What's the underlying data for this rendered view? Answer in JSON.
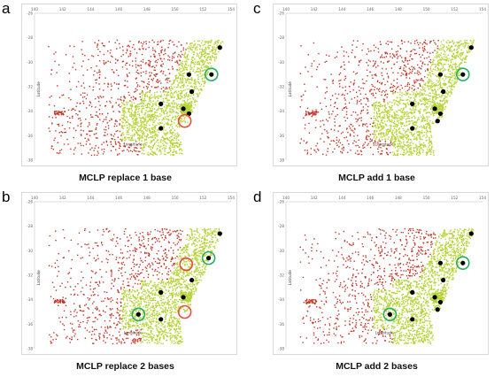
{
  "panels": [
    {
      "letter": "a",
      "caption": "MCLP replace 1 base"
    },
    {
      "letter": "c",
      "caption": "MCLP add 1 base"
    },
    {
      "letter": "b",
      "caption": "MCLP replace 2 bases"
    },
    {
      "letter": "d",
      "caption": "MCLP add 2 bases"
    }
  ],
  "colors": {
    "uncovered": "#c0392b",
    "covered": "#b5d334",
    "base": "#000000",
    "new_base_circle": "#27ae60",
    "removed_base_circle": "#e74c3c"
  },
  "chart_data": [
    {
      "type": "scatter",
      "panel": "a",
      "title": "MCLP replace 1 base",
      "xlabel": "Longitude",
      "ylabel": "Latitude",
      "xlim": [
        140,
        154
      ],
      "ylim": [
        -38,
        -26
      ],
      "x_ticks": [
        140,
        142,
        144,
        146,
        148,
        150,
        152,
        154
      ],
      "y_ticks": [
        -26,
        -28,
        -30,
        -32,
        -34,
        -36,
        -38
      ],
      "bases": [
        [
          153.2,
          -28.8
        ],
        [
          151.0,
          -31.0
        ],
        [
          152.6,
          -31.0
        ],
        [
          151.2,
          -32.4
        ],
        [
          150.6,
          -33.8
        ],
        [
          151.0,
          -34.2
        ],
        [
          149.0,
          -33.4
        ],
        [
          149.0,
          -35.4
        ]
      ],
      "new_bases": [
        [
          152.6,
          -31.0
        ]
      ],
      "removed_bases": [
        [
          150.7,
          -34.8
        ]
      ]
    },
    {
      "type": "scatter",
      "panel": "c",
      "title": "MCLP add 1 base",
      "xlabel": "Longitude",
      "ylabel": "Latitude",
      "xlim": [
        140,
        154
      ],
      "ylim": [
        -38,
        -26
      ],
      "x_ticks": [
        140,
        142,
        144,
        146,
        148,
        150,
        152,
        154
      ],
      "y_ticks": [
        -26,
        -28,
        -30,
        -32,
        -34,
        -36,
        -38
      ],
      "bases": [
        [
          153.2,
          -28.8
        ],
        [
          151.0,
          -31.0
        ],
        [
          152.6,
          -31.0
        ],
        [
          151.2,
          -32.4
        ],
        [
          150.6,
          -33.8
        ],
        [
          151.0,
          -34.2
        ],
        [
          150.8,
          -34.8
        ],
        [
          149.0,
          -33.4
        ],
        [
          149.0,
          -35.4
        ]
      ],
      "new_bases": [
        [
          152.6,
          -31.0
        ]
      ],
      "removed_bases": []
    },
    {
      "type": "scatter",
      "panel": "b",
      "title": "MCLP replace 2 bases",
      "xlabel": "Longitude",
      "ylabel": "Latitude",
      "xlim": [
        140,
        154
      ],
      "ylim": [
        -38,
        -26
      ],
      "x_ticks": [
        140,
        142,
        144,
        146,
        148,
        150,
        152,
        154
      ],
      "y_ticks": [
        -26,
        -28,
        -30,
        -32,
        -34,
        -36,
        -38
      ],
      "bases": [
        [
          153.2,
          -28.6
        ],
        [
          152.4,
          -30.6
        ],
        [
          151.2,
          -32.4
        ],
        [
          150.6,
          -33.8
        ],
        [
          149.0,
          -33.4
        ],
        [
          147.4,
          -35.2
        ],
        [
          149.0,
          -35.6
        ]
      ],
      "new_bases": [
        [
          152.4,
          -30.6
        ],
        [
          147.4,
          -35.2
        ]
      ],
      "removed_bases": [
        [
          150.8,
          -31.1
        ],
        [
          150.7,
          -35.0
        ]
      ]
    },
    {
      "type": "scatter",
      "panel": "d",
      "title": "MCLP add 2 bases",
      "xlabel": "Longitude",
      "ylabel": "Latitude",
      "xlim": [
        140,
        154
      ],
      "ylim": [
        -38,
        -26
      ],
      "x_ticks": [
        140,
        142,
        144,
        146,
        148,
        150,
        152,
        154
      ],
      "y_ticks": [
        -26,
        -28,
        -30,
        -32,
        -34,
        -36,
        -38
      ],
      "bases": [
        [
          153.2,
          -28.6
        ],
        [
          151.0,
          -31.0
        ],
        [
          152.6,
          -31.0
        ],
        [
          151.2,
          -32.4
        ],
        [
          150.6,
          -33.8
        ],
        [
          151.0,
          -34.2
        ],
        [
          150.8,
          -34.8
        ],
        [
          149.0,
          -33.4
        ],
        [
          147.4,
          -35.2
        ],
        [
          149.0,
          -35.6
        ]
      ],
      "new_bases": [
        [
          152.6,
          -31.0
        ],
        [
          147.4,
          -35.2
        ]
      ],
      "removed_bases": []
    }
  ]
}
